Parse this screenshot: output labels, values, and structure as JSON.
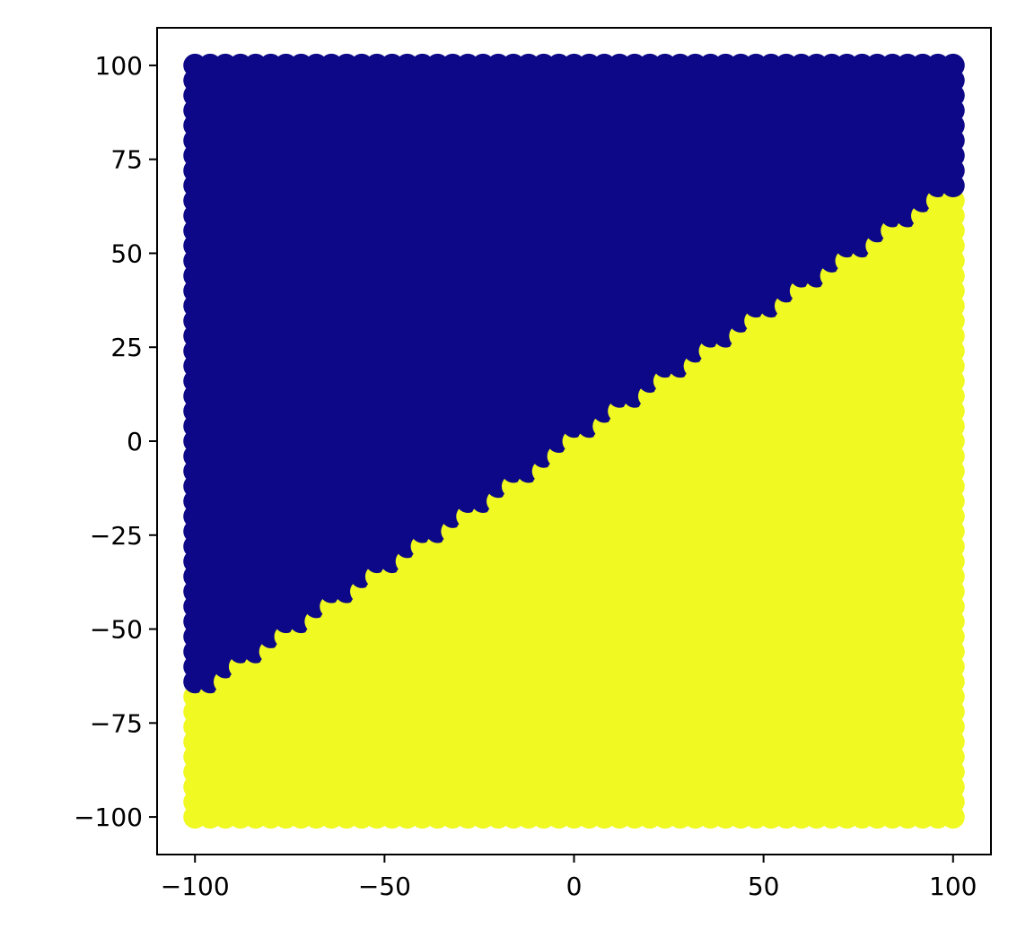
{
  "chart_data": {
    "type": "scatter",
    "title": "",
    "xlabel": "",
    "ylabel": "",
    "xlim": [
      -110,
      110
    ],
    "ylim": [
      -110,
      110
    ],
    "grid": false,
    "legend": "none",
    "x_ticks": [
      -100,
      -50,
      0,
      50,
      100
    ],
    "y_ticks": [
      -100,
      -75,
      -50,
      -25,
      0,
      25,
      50,
      75,
      100
    ],
    "x_tick_labels": [
      "−100",
      "−50",
      "0",
      "50",
      "100"
    ],
    "y_tick_labels": [
      "−100",
      "−75",
      "−50",
      "−25",
      "0",
      "25",
      "50",
      "75",
      "100"
    ],
    "grid_points": {
      "x_range": [
        -100,
        100
      ],
      "y_range": [
        -100,
        100
      ],
      "step": 4
    },
    "decision_boundary": {
      "slope": 0.667,
      "intercept": 0
    },
    "classes": [
      {
        "region": "y > 0.667x",
        "color": "#0d0887"
      },
      {
        "region": "y < 0.667x",
        "color": "#f0f921"
      }
    ]
  }
}
